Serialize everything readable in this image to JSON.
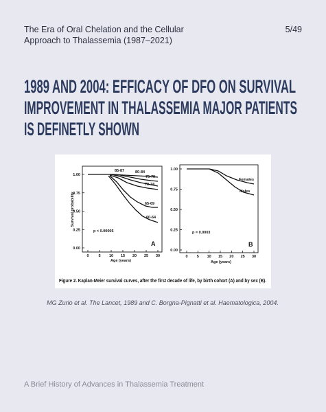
{
  "header": {
    "title_lines": [
      "The Era of Oral Chelation and the Cellular",
      "Approach to Thalassemia  (1987–2021)"
    ],
    "page": "5/49"
  },
  "title_lines": [
    "1989 AND 2004: EFFICACY OF DFO ON SURVIVAL",
    "IMPROVEMENT IN THALASSEMIA MAJOR PATIENTS",
    "IS DEFINETLY SHOWN"
  ],
  "figure": {
    "panel_a": {
      "y_label": "Survival probability",
      "x_label": "Age (years)",
      "yticks": [
        "1.00",
        "0.75",
        "0.50",
        "0.25",
        "0.00"
      ],
      "xticks": [
        "0",
        "5",
        "10",
        "15",
        "20",
        "25",
        "30"
      ],
      "curve_labels": [
        "85-87",
        "80-84",
        "75-79",
        "70-74",
        "65-69",
        "60-64"
      ],
      "p_value": "p < 0.00005",
      "letter": "A"
    },
    "panel_b": {
      "x_label": "Age (years)",
      "yticks": [
        "1.00",
        "0.75",
        "0.50",
        "0.25",
        "0.00"
      ],
      "xticks": [
        "0",
        "5",
        "10",
        "15",
        "20",
        "25",
        "30"
      ],
      "curve_labels": [
        "Females",
        "Males"
      ],
      "p_value": "p = 0.0003",
      "letter": "B"
    },
    "caption": "Figure 2. Kaplan-Meier survival curves, after the first decade of life, by birth cohort (A) and  by sex (B)."
  },
  "citation": "MG Zurlo et al. The Lancet, 1989 and C. Borgna-Pignatti et al. Haematologica, 2004.",
  "footer": "A Brief History of Advances in Thalassemia Treatment"
}
